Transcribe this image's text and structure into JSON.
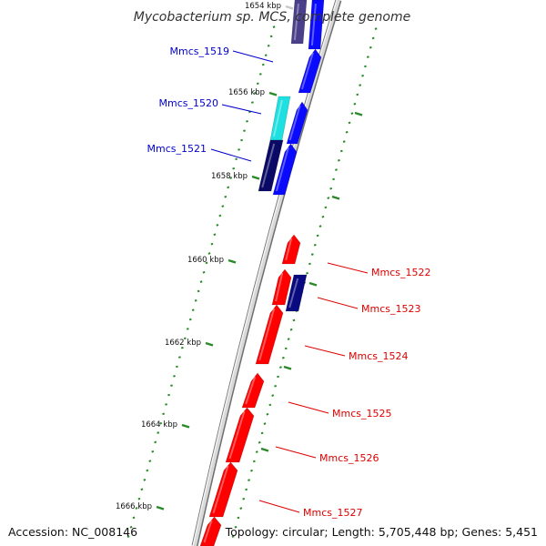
{
  "title": "Mycobacterium sp. MCS, complete genome",
  "footer": {
    "accession": "Accession: NC_008146",
    "summary": "Topology: circular; Length: 5,705,448 bp; Genes: 5,451"
  },
  "colors": {
    "forward_gene": "#0a0aff",
    "forward_gene_dark": "#0a0a66",
    "forward_gene_faded": "#4a3f8a",
    "highlight_gene": "#1ee0e0",
    "reverse_gene": "#ff0000",
    "reverse_gene_dark": "#0a0a80",
    "backbone": "#888888",
    "tick": "#2a8a2a",
    "label_forward": "#0000cc",
    "label_reverse": "#dd0000"
  },
  "ticks": [
    {
      "label": "1654 kbp",
      "faded": true
    },
    {
      "label": "1656 kbp"
    },
    {
      "label": "1658 kbp"
    },
    {
      "label": "1660 kbp"
    },
    {
      "label": "1662 kbp"
    },
    {
      "label": "1664 kbp"
    },
    {
      "label": "1666 kbp"
    }
  ],
  "genes_left": [
    {
      "name": "Mmcs_1519"
    },
    {
      "name": "Mmcs_1520"
    },
    {
      "name": "Mmcs_1521"
    }
  ],
  "genes_right": [
    {
      "name": "Mmcs_1522"
    },
    {
      "name": "Mmcs_1523"
    },
    {
      "name": "Mmcs_1524"
    },
    {
      "name": "Mmcs_1525"
    },
    {
      "name": "Mmcs_1526"
    },
    {
      "name": "Mmcs_1527"
    }
  ]
}
